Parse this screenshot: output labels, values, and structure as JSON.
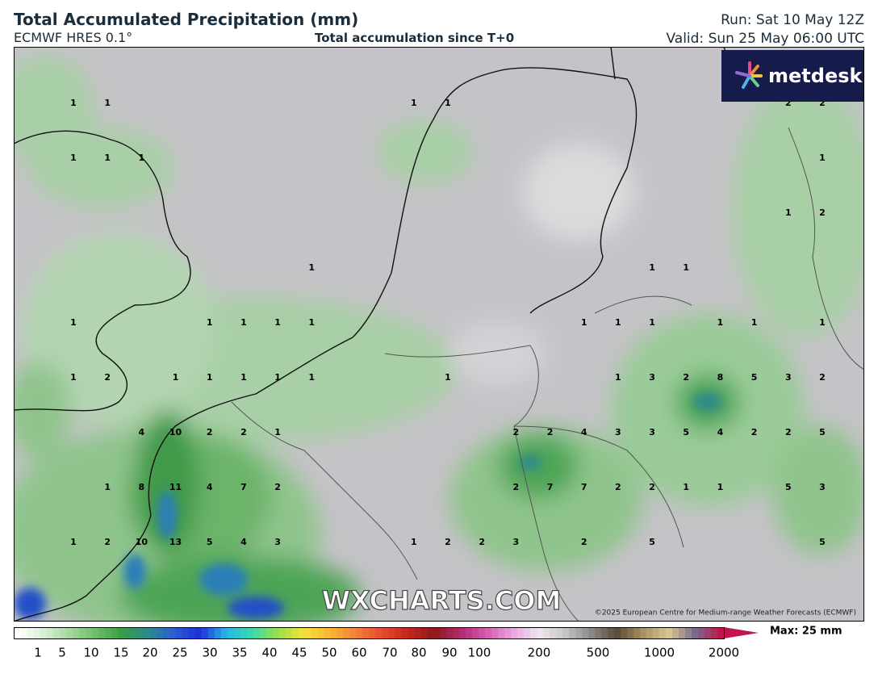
{
  "header": {
    "title": "Total Accumulated Precipitation (mm)",
    "model": "ECMWF HRES 0.1°",
    "subtitle": "Total accumulation since T+0",
    "run": "Run: Sat 10 May 12Z",
    "valid": "Valid: Sun 25 May 06:00 UTC"
  },
  "logo": "metdesk",
  "watermark": "WXCHARTS.COM",
  "copyright": "©2025 European Centre for Medium-range Weather Forecasts (ECMWF)",
  "grid_values": [
    [
      1,
      1,
      null,
      null,
      null,
      null,
      null,
      null,
      null,
      null,
      1,
      1,
      null,
      null,
      null,
      null,
      null,
      null,
      null,
      null,
      null,
      2,
      2
    ],
    [
      1,
      1,
      1,
      null,
      null,
      null,
      null,
      null,
      null,
      null,
      null,
      null,
      null,
      null,
      null,
      null,
      null,
      null,
      null,
      null,
      null,
      null,
      1
    ],
    [
      null,
      null,
      null,
      null,
      null,
      null,
      null,
      null,
      null,
      null,
      null,
      null,
      null,
      null,
      null,
      null,
      null,
      null,
      null,
      null,
      null,
      1,
      2
    ],
    [
      null,
      null,
      null,
      null,
      null,
      null,
      null,
      1,
      null,
      null,
      null,
      null,
      null,
      null,
      null,
      null,
      null,
      1,
      1,
      null,
      null,
      null,
      null
    ],
    [
      1,
      null,
      null,
      null,
      1,
      1,
      1,
      1,
      null,
      null,
      null,
      null,
      null,
      null,
      null,
      1,
      1,
      1,
      null,
      1,
      1,
      null,
      1
    ],
    [
      1,
      2,
      null,
      1,
      1,
      1,
      1,
      1,
      null,
      null,
      null,
      1,
      null,
      null,
      null,
      null,
      1,
      3,
      2,
      8,
      5,
      3,
      2
    ],
    [
      null,
      null,
      4,
      10,
      2,
      2,
      1,
      null,
      null,
      null,
      null,
      null,
      null,
      2,
      2,
      4,
      3,
      3,
      5,
      4,
      2,
      2,
      5
    ],
    [
      null,
      1,
      8,
      11,
      4,
      7,
      2,
      null,
      null,
      null,
      null,
      null,
      null,
      2,
      7,
      7,
      2,
      2,
      1,
      1,
      null,
      5,
      3
    ],
    [
      1,
      2,
      10,
      13,
      5,
      4,
      3,
      null,
      null,
      null,
      1,
      2,
      2,
      3,
      null,
      2,
      null,
      5,
      null,
      null,
      null,
      null,
      5
    ]
  ],
  "colorbar": {
    "labels": [
      1,
      5,
      10,
      15,
      20,
      25,
      30,
      35,
      40,
      45,
      50,
      60,
      70,
      80,
      90,
      100,
      200,
      500,
      1000,
      2000
    ],
    "max_label": "Max: 25 mm"
  }
}
